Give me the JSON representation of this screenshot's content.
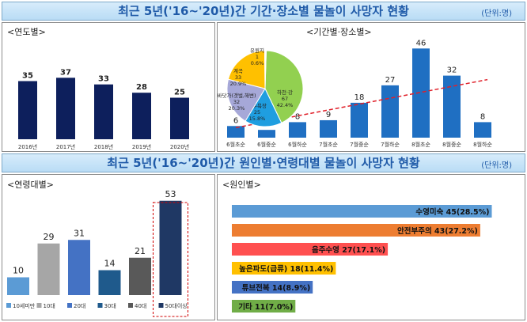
{
  "header1": {
    "title": "최근 5년('16~'20년)간 기간·장소별 물놀이 사망자 현황",
    "unit": "(단위:명)"
  },
  "header2": {
    "title": "최근 5년('16~'20년)간 원인별·연령대별 물놀이 사망자 현황",
    "unit": "(단위:명)"
  },
  "panels": {
    "year": "<연도별>",
    "period": "<기간별·장소별>",
    "age": "<연령대별>",
    "cause": "<원인별>"
  },
  "colors": {
    "navy": "#0d1f5c",
    "blue": "#1f6fc2",
    "trend": "#e0202a"
  },
  "chart_data": [
    {
      "type": "bar",
      "name": "year",
      "categories": [
        "2016년",
        "2017년",
        "2018년",
        "2019년",
        "2020년"
      ],
      "values": [
        35,
        37,
        33,
        28,
        25
      ]
    },
    {
      "type": "bar",
      "name": "period",
      "categories": [
        "6월초순",
        "6월중순",
        "6월하순",
        "7월초순",
        "7월중순",
        "7월하순",
        "8월초순",
        "8월중순",
        "8월하순"
      ],
      "values": [
        6,
        4,
        8,
        9,
        18,
        27,
        46,
        32,
        8
      ],
      "trendline": true
    },
    {
      "type": "pie",
      "name": "place",
      "slices": [
        {
          "label": "하천·강",
          "value": 67,
          "pct": "42.4%",
          "color": "#92d050"
        },
        {
          "label": "해수욕장",
          "value": 25,
          "pct": "15.8%",
          "color": "#1f9ee0"
        },
        {
          "label": "바닷가(갯벌,해변)",
          "value": 32,
          "pct": "20.3%",
          "color": "#a6a8d8"
        },
        {
          "label": "계곡",
          "value": 33,
          "pct": "20.9%",
          "color": "#ffc000"
        },
        {
          "label": "유원지",
          "value": 1,
          "pct": "0.6%",
          "color": "#ffffff"
        }
      ]
    },
    {
      "type": "bar",
      "name": "age",
      "categories": [
        "10세미만",
        "10대",
        "20대",
        "30대",
        "40대",
        "50대이상"
      ],
      "values": [
        10,
        29,
        31,
        14,
        21,
        53
      ],
      "colors": [
        "#5b9bd5",
        "#a6a6a6",
        "#4472c4",
        "#1f5a8c",
        "#595959",
        "#1f3864"
      ],
      "highlight": "50대이상"
    },
    {
      "type": "bar",
      "name": "cause",
      "orientation": "horizontal",
      "categories": [
        "수영미숙",
        "안전부주의",
        "음주수영",
        "높은파도(급류)",
        "튜브전복",
        "기타"
      ],
      "values": [
        45,
        43,
        27,
        18,
        14,
        11
      ],
      "labels": [
        "수영미숙 45(28.5%)",
        "안전부주의 43(27.2%)",
        "음주수영 27(17.1%)",
        "높은파도(급류) 18(11.4%)",
        "튜브전복 14(8.9%)",
        "기타 11(7.0%)"
      ],
      "colors": [
        "#5b9bd5",
        "#ed7d31",
        "#ff5050",
        "#ffc000",
        "#4472c4",
        "#70ad47"
      ]
    }
  ]
}
